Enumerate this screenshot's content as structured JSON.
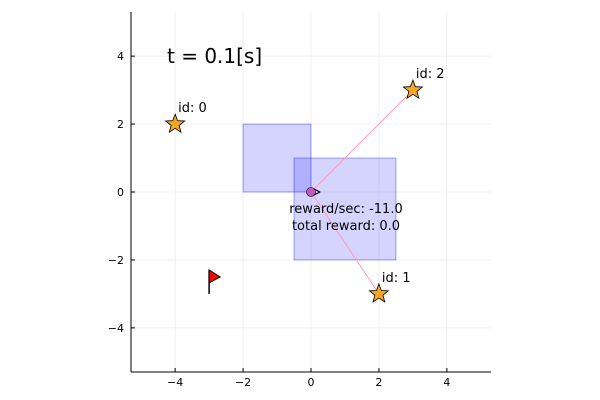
{
  "time_label": "t = 0.1[s]",
  "reward_rate_label": "reward/sec: -11.0",
  "total_reward_label": "total reward: 0.0",
  "axes": {
    "x_range": [
      -5.3,
      5.3
    ],
    "y_range": [
      -5.3,
      5.3
    ],
    "x_ticks": [
      -4,
      -2,
      0,
      2,
      4
    ],
    "y_ticks": [
      -4,
      -2,
      0,
      2,
      4
    ],
    "x_tick_labels": [
      "−4",
      "−2",
      "0",
      "2",
      "4"
    ],
    "y_tick_labels": [
      "−4",
      "−2",
      "0",
      "2",
      "4"
    ],
    "grid": true
  },
  "agent": {
    "x": 0,
    "y": 0
  },
  "flag": {
    "x": -3,
    "y": -2.5
  },
  "targets": [
    {
      "label": "id: 0",
      "x": -4,
      "y": 2
    },
    {
      "label": "id: 1",
      "x": 2,
      "y": -3
    },
    {
      "label": "id: 2",
      "x": 3,
      "y": 3
    }
  ],
  "regions": [
    {
      "x_min": -2,
      "x_max": 0,
      "y_min": 0,
      "y_max": 2
    },
    {
      "x_min": -0.5,
      "x_max": 2.5,
      "y_min": -2,
      "y_max": 1
    }
  ],
  "colors": {
    "star_fill": "#f5a623",
    "region_fill": "#0000ff",
    "ray": "#ff9bb8",
    "agent": "#c05cc0",
    "flag": "#ff0000",
    "grid": "#ececec"
  }
}
